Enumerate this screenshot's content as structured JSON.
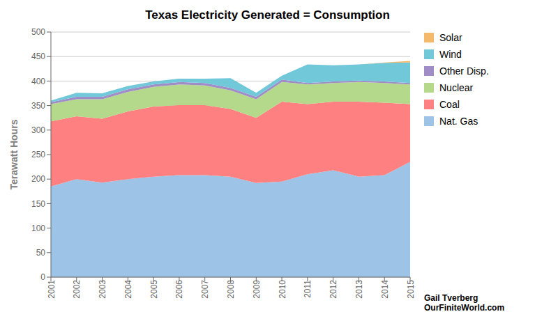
{
  "chart_data": {
    "type": "area",
    "title": "Texas Electricity Generated = Consumption",
    "ylabel": "Terawatt Hours",
    "x": [
      2001,
      2002,
      2003,
      2004,
      2005,
      2006,
      2007,
      2008,
      2009,
      2010,
      2011,
      2012,
      2013,
      2014,
      2015
    ],
    "series": [
      {
        "name": "Nat. Gas",
        "color": "#9DC3E6",
        "values": [
          185,
          200,
          193,
          200,
          205,
          208,
          208,
          205,
          192,
          195,
          210,
          218,
          205,
          208,
          235
        ]
      },
      {
        "name": "Coal",
        "color": "#FF8080",
        "values": [
          133,
          128,
          130,
          138,
          143,
          143,
          143,
          138,
          133,
          163,
          143,
          140,
          153,
          148,
          118
        ]
      },
      {
        "name": "Nuclear",
        "color": "#B4D98A",
        "values": [
          35,
          35,
          40,
          40,
          40,
          42,
          40,
          38,
          38,
          40,
          40,
          38,
          40,
          40,
          40
        ]
      },
      {
        "name": "Other Disp.",
        "color": "#A08DC8",
        "values": [
          4,
          5,
          5,
          5,
          5,
          5,
          5,
          5,
          5,
          5,
          3,
          3,
          3,
          3,
          3
        ]
      },
      {
        "name": "Wind",
        "color": "#70C8D8",
        "values": [
          3,
          8,
          7,
          7,
          6,
          7,
          9,
          20,
          8,
          8,
          38,
          33,
          33,
          38,
          42
        ]
      },
      {
        "name": "Solar",
        "color": "#F5B96B",
        "values": [
          0,
          0,
          0,
          0,
          0,
          0,
          0,
          0,
          0,
          0,
          0,
          0,
          0,
          1,
          3
        ]
      }
    ],
    "stacked": true,
    "xlim": [
      2001,
      2015
    ],
    "xticks": [
      2001,
      2002,
      2003,
      2004,
      2005,
      2006,
      2007,
      2008,
      2009,
      2010,
      2011,
      2012,
      2013,
      2014,
      2015
    ],
    "ylim": [
      0,
      500
    ],
    "yticks": [
      0,
      50,
      100,
      150,
      200,
      250,
      300,
      350,
      400,
      450,
      500
    ],
    "grid": true,
    "legend": "right",
    "annotations": [
      "Gail Tverberg",
      "OurFiniteWorld.com"
    ]
  }
}
